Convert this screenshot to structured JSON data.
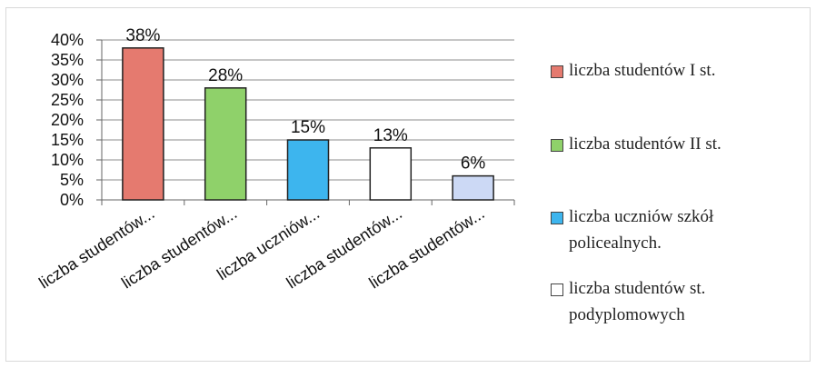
{
  "chart_data": {
    "type": "bar",
    "categories": [
      "liczba studentów...",
      "liczba studentów...",
      "liczba uczniów...",
      "liczba studentów...",
      "liczba studentów..."
    ],
    "values": [
      38,
      28,
      15,
      13,
      6
    ],
    "data_labels": [
      "38%",
      "28%",
      "15%",
      "13%",
      "6%"
    ],
    "bar_colors": [
      "#e57a6f",
      "#8fd16a",
      "#3db5ee",
      "#ffffff",
      "#ccd9f5"
    ],
    "y_ticks": [
      "0%",
      "5%",
      "10%",
      "15%",
      "20%",
      "25%",
      "30%",
      "35%",
      "40%"
    ],
    "ylim": [
      0,
      40
    ],
    "grid": true,
    "legend_position": "right",
    "legend": [
      {
        "label": "liczba studentów I st.",
        "color": "#e57a6f"
      },
      {
        "label": "liczba studentów II st.",
        "color": "#8fd16a"
      },
      {
        "label": "liczba uczniów szkół policealnych.",
        "color": "#3db5ee"
      },
      {
        "label": "liczba studentów st. podyplomowych",
        "color": "#ffffff"
      }
    ]
  }
}
